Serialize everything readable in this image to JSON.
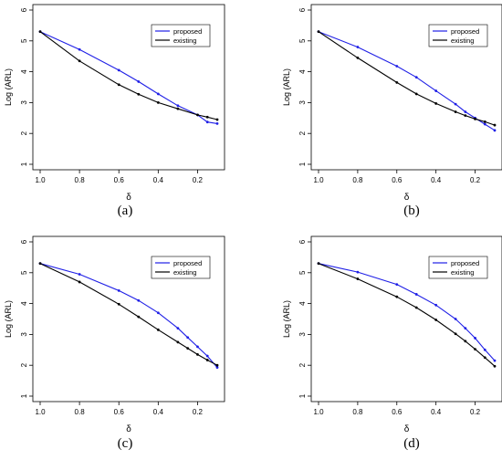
{
  "chart_data": [
    {
      "type": "line",
      "caption": "(a)",
      "xlabel": "δ",
      "ylabel": "Log (ARL)",
      "xlim": [
        1.0,
        0.1
      ],
      "ylim": [
        1,
        6
      ],
      "xticks": [
        "1.0",
        "0.8",
        "0.6",
        "0.4",
        "0.2"
      ],
      "yticks": [
        "1",
        "2",
        "3",
        "4",
        "5",
        "6"
      ],
      "legend_position": "top-right",
      "series": [
        {
          "name": "proposed",
          "color": "#1f1fe6",
          "x": [
            1.0,
            0.8,
            0.6,
            0.5,
            0.4,
            0.3,
            0.2,
            0.15,
            0.1
          ],
          "y": [
            5.3,
            4.72,
            4.05,
            3.68,
            3.28,
            2.9,
            2.6,
            2.37,
            2.32
          ]
        },
        {
          "name": "existing",
          "color": "#000000",
          "x": [
            1.0,
            0.8,
            0.6,
            0.5,
            0.4,
            0.3,
            0.2,
            0.15,
            0.1
          ],
          "y": [
            5.3,
            4.35,
            3.58,
            3.27,
            3.0,
            2.8,
            2.6,
            2.53,
            2.45
          ]
        }
      ]
    },
    {
      "type": "line",
      "caption": "(b)",
      "xlabel": "δ",
      "ylabel": "Log (ARL)",
      "xlim": [
        1.0,
        0.1
      ],
      "ylim": [
        1,
        6
      ],
      "xticks": [
        "1.0",
        "0.8",
        "0.6",
        "0.4",
        "0.2"
      ],
      "yticks": [
        "1",
        "2",
        "3",
        "4",
        "5",
        "6"
      ],
      "legend_position": "top-right",
      "series": [
        {
          "name": "proposed",
          "color": "#1f1fe6",
          "x": [
            1.0,
            0.8,
            0.6,
            0.5,
            0.4,
            0.3,
            0.25,
            0.2,
            0.15,
            0.1
          ],
          "y": [
            5.3,
            4.8,
            4.18,
            3.82,
            3.38,
            2.95,
            2.7,
            2.5,
            2.3,
            2.1
          ]
        },
        {
          "name": "existing",
          "color": "#000000",
          "x": [
            1.0,
            0.8,
            0.6,
            0.5,
            0.4,
            0.3,
            0.25,
            0.2,
            0.15,
            0.1
          ],
          "y": [
            5.3,
            4.45,
            3.65,
            3.28,
            2.97,
            2.7,
            2.58,
            2.47,
            2.38,
            2.27
          ]
        }
      ]
    },
    {
      "type": "line",
      "caption": "(c)",
      "xlabel": "δ",
      "ylabel": "Log (ARL)",
      "xlim": [
        1.0,
        0.1
      ],
      "ylim": [
        1,
        6
      ],
      "xticks": [
        "1.0",
        "0.8",
        "0.6",
        "0.4",
        "0.2"
      ],
      "yticks": [
        "1",
        "2",
        "3",
        "4",
        "5",
        "6"
      ],
      "legend_position": "top-right",
      "series": [
        {
          "name": "proposed",
          "color": "#1f1fe6",
          "x": [
            1.0,
            0.8,
            0.6,
            0.5,
            0.4,
            0.3,
            0.25,
            0.2,
            0.15,
            0.1
          ],
          "y": [
            5.3,
            4.95,
            4.42,
            4.1,
            3.7,
            3.2,
            2.9,
            2.6,
            2.3,
            1.93
          ]
        },
        {
          "name": "existing",
          "color": "#000000",
          "x": [
            1.0,
            0.8,
            0.6,
            0.5,
            0.4,
            0.3,
            0.25,
            0.2,
            0.15,
            0.1
          ],
          "y": [
            5.3,
            4.7,
            3.98,
            3.57,
            3.15,
            2.75,
            2.55,
            2.35,
            2.17,
            2.0
          ]
        }
      ]
    },
    {
      "type": "line",
      "caption": "(d)",
      "xlabel": "δ",
      "ylabel": "Log (ARL)",
      "xlim": [
        1.0,
        0.1
      ],
      "ylim": [
        1,
        6
      ],
      "xticks": [
        "1.0",
        "0.8",
        "0.6",
        "0.4",
        "0.2"
      ],
      "yticks": [
        "1",
        "2",
        "3",
        "4",
        "5",
        "6"
      ],
      "legend_position": "top-right",
      "series": [
        {
          "name": "proposed",
          "color": "#1f1fe6",
          "x": [
            1.0,
            0.8,
            0.6,
            0.5,
            0.4,
            0.3,
            0.25,
            0.2,
            0.15,
            0.1
          ],
          "y": [
            5.3,
            5.02,
            4.62,
            4.3,
            3.95,
            3.5,
            3.2,
            2.88,
            2.5,
            2.15
          ]
        },
        {
          "name": "existing",
          "color": "#000000",
          "x": [
            1.0,
            0.8,
            0.6,
            0.5,
            0.4,
            0.3,
            0.25,
            0.2,
            0.15,
            0.1
          ],
          "y": [
            5.3,
            4.8,
            4.22,
            3.87,
            3.47,
            3.02,
            2.78,
            2.52,
            2.25,
            1.97
          ]
        }
      ]
    }
  ]
}
